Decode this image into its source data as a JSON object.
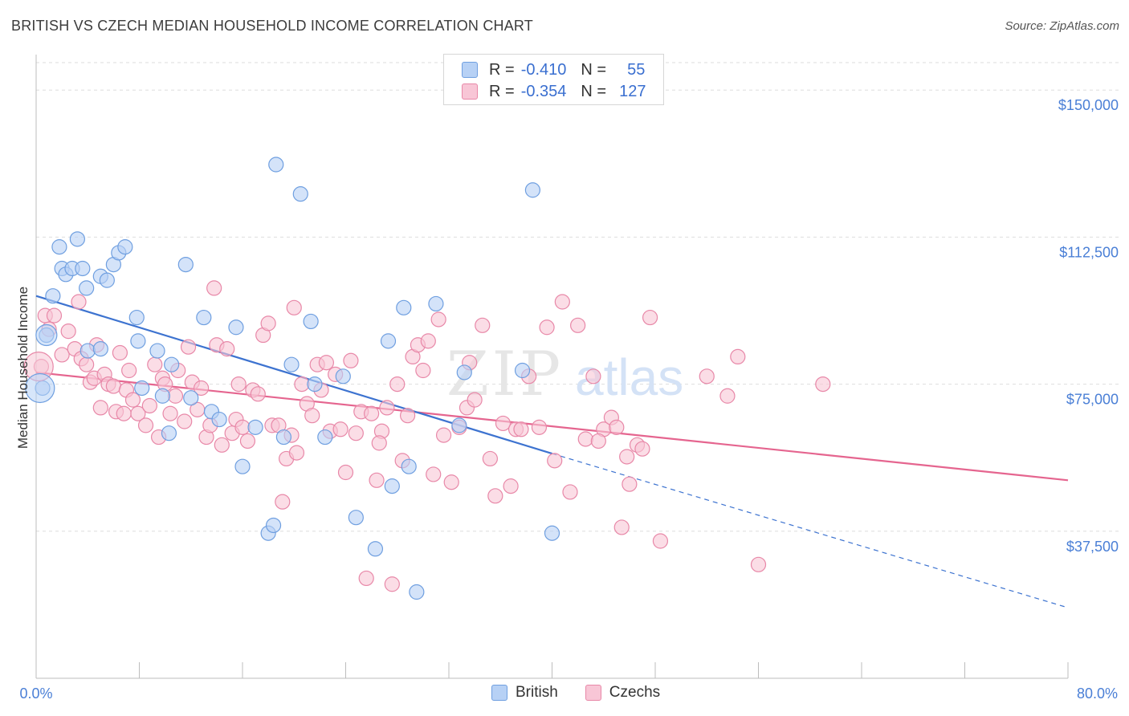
{
  "title": "BRITISH VS CZECH MEDIAN HOUSEHOLD INCOME CORRELATION CHART",
  "source": "Source: ZipAtlas.com",
  "watermark": {
    "zip": "ZIP",
    "atlas": "atlas"
  },
  "legend": {
    "british": {
      "r_label": "R =",
      "r_value": "-0.410",
      "n_label": "N =",
      "n_value": "55"
    },
    "czechs": {
      "r_label": "R =",
      "r_value": "-0.354",
      "n_label": "N =",
      "n_value": "127"
    }
  },
  "bottom_legend": {
    "british": "British",
    "czechs": "Czechs"
  },
  "colors": {
    "british_fill": "#b7d1f5",
    "british_stroke": "#6f9fe0",
    "british_line": "#3d73d0",
    "czech_fill": "#f8c6d6",
    "czech_stroke": "#e888a8",
    "czech_line": "#e5658f",
    "axis_text": "#4a7fd6",
    "grid": "#dddddd"
  },
  "chart_data": {
    "type": "scatter",
    "title": "BRITISH VS CZECH MEDIAN HOUSEHOLD INCOME CORRELATION CHART",
    "xlabel": "",
    "ylabel": "Median Household Income",
    "xlim": [
      0,
      80
    ],
    "ylim": [
      0,
      157000
    ],
    "x_tick_labels": [
      "0.0%",
      "80.0%"
    ],
    "y_ticks": [
      37500,
      75000,
      112500,
      150000
    ],
    "y_tick_labels": [
      "$37,500",
      "$75,000",
      "$112,500",
      "$150,000"
    ],
    "grid": true,
    "series": [
      {
        "name": "British",
        "r": -0.41,
        "n": 55,
        "trend": {
          "x0": 0,
          "y0": 97500,
          "x1": 40,
          "y1": 57300,
          "dashed_to_x": 80,
          "dashed_to_y": 18000
        },
        "points": [
          [
            0.5,
            74000
          ],
          [
            0.8,
            87500
          ],
          [
            1.3,
            97500
          ],
          [
            1.8,
            110000
          ],
          [
            2.0,
            104500
          ],
          [
            2.3,
            103000
          ],
          [
            2.8,
            104500
          ],
          [
            3.2,
            112000
          ],
          [
            3.6,
            104500
          ],
          [
            3.9,
            99500
          ],
          [
            4.0,
            83500
          ],
          [
            5.0,
            102500
          ],
          [
            5.5,
            101500
          ],
          [
            5.0,
            84000
          ],
          [
            6.0,
            105500
          ],
          [
            6.4,
            108500
          ],
          [
            6.9,
            110000
          ],
          [
            7.8,
            92000
          ],
          [
            7.9,
            86000
          ],
          [
            8.2,
            74000
          ],
          [
            9.4,
            83500
          ],
          [
            9.8,
            72000
          ],
          [
            10.3,
            62500
          ],
          [
            10.5,
            80000
          ],
          [
            11.6,
            105500
          ],
          [
            12.0,
            71500
          ],
          [
            13.0,
            92000
          ],
          [
            13.6,
            68000
          ],
          [
            14.2,
            66000
          ],
          [
            15.5,
            89500
          ],
          [
            16.0,
            54000
          ],
          [
            17.0,
            64000
          ],
          [
            18.0,
            37000
          ],
          [
            18.4,
            39000
          ],
          [
            18.6,
            131000
          ],
          [
            19.2,
            61500
          ],
          [
            19.8,
            80000
          ],
          [
            20.5,
            123500
          ],
          [
            21.3,
            91000
          ],
          [
            21.6,
            75000
          ],
          [
            22.4,
            61500
          ],
          [
            23.8,
            77000
          ],
          [
            24.8,
            41000
          ],
          [
            26.3,
            33000
          ],
          [
            27.3,
            86000
          ],
          [
            27.6,
            49000
          ],
          [
            28.5,
            94500
          ],
          [
            28.9,
            54000
          ],
          [
            29.5,
            22000
          ],
          [
            31.0,
            95500
          ],
          [
            32.8,
            64500
          ],
          [
            33.2,
            78000
          ],
          [
            37.7,
            78500
          ],
          [
            40.0,
            37000
          ],
          [
            38.5,
            124500
          ]
        ]
      },
      {
        "name": "Czechs",
        "r": -0.354,
        "n": 127,
        "trend": {
          "x0": 0,
          "y0": 78000,
          "x1": 80,
          "y1": 50500
        },
        "points": [
          [
            0.4,
            79500
          ],
          [
            0.7,
            92500
          ],
          [
            1.0,
            89000
          ],
          [
            1.4,
            92500
          ],
          [
            2.0,
            82500
          ],
          [
            2.5,
            88500
          ],
          [
            3.0,
            84000
          ],
          [
            3.3,
            96000
          ],
          [
            3.5,
            81500
          ],
          [
            3.9,
            80000
          ],
          [
            4.2,
            75500
          ],
          [
            4.5,
            76500
          ],
          [
            4.7,
            85000
          ],
          [
            5.0,
            69000
          ],
          [
            5.3,
            77500
          ],
          [
            5.6,
            75000
          ],
          [
            6.0,
            74500
          ],
          [
            6.2,
            68000
          ],
          [
            6.5,
            83000
          ],
          [
            6.8,
            67500
          ],
          [
            7.0,
            73500
          ],
          [
            7.2,
            78500
          ],
          [
            7.5,
            71000
          ],
          [
            7.9,
            67500
          ],
          [
            8.5,
            64500
          ],
          [
            8.8,
            69500
          ],
          [
            9.2,
            80000
          ],
          [
            9.5,
            61500
          ],
          [
            9.8,
            76500
          ],
          [
            10.0,
            75000
          ],
          [
            10.4,
            67500
          ],
          [
            10.8,
            72000
          ],
          [
            11.0,
            78500
          ],
          [
            11.5,
            65500
          ],
          [
            11.8,
            84500
          ],
          [
            12.1,
            75500
          ],
          [
            12.5,
            68500
          ],
          [
            12.8,
            74000
          ],
          [
            13.2,
            61500
          ],
          [
            13.5,
            64500
          ],
          [
            13.8,
            99500
          ],
          [
            14.0,
            85000
          ],
          [
            14.4,
            59500
          ],
          [
            14.8,
            84000
          ],
          [
            15.2,
            62500
          ],
          [
            15.5,
            66000
          ],
          [
            15.7,
            75000
          ],
          [
            16.0,
            64000
          ],
          [
            16.4,
            60500
          ],
          [
            16.8,
            73500
          ],
          [
            17.2,
            72500
          ],
          [
            17.6,
            87500
          ],
          [
            18.0,
            90500
          ],
          [
            18.3,
            64500
          ],
          [
            18.8,
            64500
          ],
          [
            19.1,
            45000
          ],
          [
            19.4,
            56000
          ],
          [
            19.8,
            62000
          ],
          [
            20.2,
            57500
          ],
          [
            20.6,
            75000
          ],
          [
            21.0,
            70000
          ],
          [
            21.4,
            67000
          ],
          [
            21.8,
            80000
          ],
          [
            22.1,
            73500
          ],
          [
            22.5,
            80500
          ],
          [
            22.8,
            63000
          ],
          [
            23.2,
            77500
          ],
          [
            23.6,
            63500
          ],
          [
            24.0,
            52500
          ],
          [
            24.4,
            81000
          ],
          [
            24.8,
            62500
          ],
          [
            25.2,
            68000
          ],
          [
            25.6,
            25500
          ],
          [
            26.0,
            67500
          ],
          [
            26.4,
            50500
          ],
          [
            26.8,
            63000
          ],
          [
            27.2,
            69000
          ],
          [
            27.6,
            24000
          ],
          [
            28.0,
            75000
          ],
          [
            28.4,
            55500
          ],
          [
            28.8,
            67000
          ],
          [
            29.2,
            82000
          ],
          [
            29.6,
            85000
          ],
          [
            30.0,
            78500
          ],
          [
            30.4,
            86000
          ],
          [
            30.8,
            52000
          ],
          [
            31.2,
            91500
          ],
          [
            31.6,
            62000
          ],
          [
            32.2,
            50000
          ],
          [
            32.8,
            64000
          ],
          [
            33.4,
            69000
          ],
          [
            34.0,
            71000
          ],
          [
            34.6,
            90000
          ],
          [
            35.2,
            56000
          ],
          [
            35.6,
            46500
          ],
          [
            36.2,
            65000
          ],
          [
            36.8,
            49000
          ],
          [
            37.2,
            63500
          ],
          [
            37.6,
            63500
          ],
          [
            38.2,
            77000
          ],
          [
            39.0,
            64000
          ],
          [
            39.6,
            89500
          ],
          [
            40.2,
            55500
          ],
          [
            40.8,
            96000
          ],
          [
            41.4,
            47500
          ],
          [
            42.0,
            90000
          ],
          [
            42.6,
            61000
          ],
          [
            43.2,
            77000
          ],
          [
            44.0,
            63500
          ],
          [
            44.6,
            66500
          ],
          [
            45.0,
            64000
          ],
          [
            45.4,
            38500
          ],
          [
            46.0,
            49500
          ],
          [
            46.6,
            59500
          ],
          [
            47.0,
            58500
          ],
          [
            47.6,
            92000
          ],
          [
            48.4,
            35000
          ],
          [
            52.0,
            77000
          ],
          [
            53.6,
            72000
          ],
          [
            54.4,
            82000
          ],
          [
            56.0,
            29000
          ],
          [
            61.0,
            75000
          ],
          [
            45.8,
            56500
          ],
          [
            43.6,
            60500
          ],
          [
            33.6,
            80500
          ],
          [
            26.6,
            60000
          ],
          [
            20.0,
            94500
          ]
        ]
      }
    ]
  }
}
